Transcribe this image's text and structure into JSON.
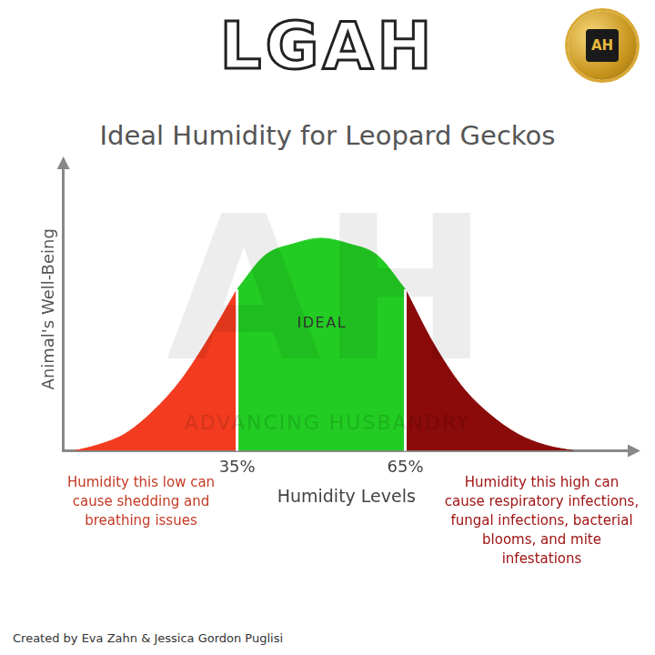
{
  "chart_data": {
    "type": "area",
    "logo": "LGAH",
    "badge": "AH",
    "title": "Ideal Humidity for Leopard Geckos",
    "watermark_logo": "AH",
    "watermark": "ADVANCING HUSBANDRY",
    "x_label": "Humidity Levels",
    "y_label": "Animal's Well-Being",
    "ideal_label": "IDEAL",
    "low_note": "Humidity this low can cause shedding and breathing issues",
    "high_note": "Humidity this high can cause respiratory infections, fungal infections, bacterial blooms, and mite infestations",
    "credit": "Created by Eva Zahn & Jessica Gordon Puglisi",
    "xlim": [
      4,
      105
    ],
    "xticks": [
      {
        "value": 35,
        "label": "35%"
      },
      {
        "value": 65,
        "label": "65%"
      }
    ],
    "ylim": [
      0,
      100
    ],
    "tick_labels": "x",
    "grid": false,
    "series": [
      {
        "color": "#f23b1f",
        "x": [
          6,
          10,
          15,
          20,
          25,
          30,
          35
        ],
        "values": [
          0,
          2,
          6,
          14,
          25,
          40,
          57
        ]
      },
      {
        "color": "#22cc22",
        "x": [
          35,
          40,
          45,
          50,
          55,
          60,
          65
        ],
        "values": [
          57,
          69,
          73,
          75,
          73,
          69,
          57
        ]
      },
      {
        "color": "#8b0a0a",
        "x": [
          65,
          70,
          75,
          80,
          85,
          90,
          95
        ],
        "values": [
          57,
          38,
          23,
          13,
          6,
          2,
          0
        ]
      }
    ]
  }
}
